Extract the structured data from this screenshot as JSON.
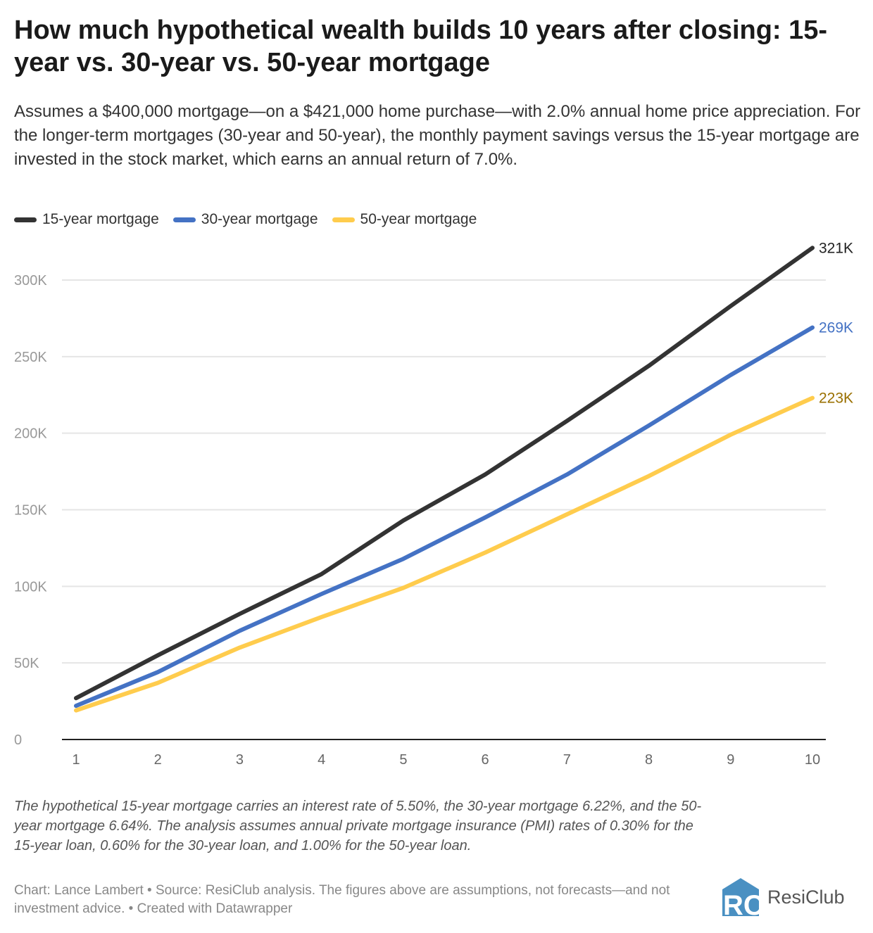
{
  "title": "How much hypothetical wealth builds 10 years after closing: 15-year vs. 30-year vs. 50-year mortgage",
  "description": "Assumes a $400,000 mortgage—on a $421,000 home purchase—with 2.0% annual home price appreciation. For the longer-term mortgages (30-year and 50-year), the monthly payment savings versus the 15-year mortgage are invested in the stock market, which earns an annual return of 7.0%.",
  "notes": "The hypothetical 15-year mortgage carries an interest rate of 5.50%, the 30-year mortgage 6.22%, and the 50-year mortgage 6.64%. The analysis assumes annual private mortgage insurance (PMI) rates of 0.30% for the 15-year loan, 0.60% for the 30-year loan, and 1.00% for the 50-year loan.",
  "source": "Chart: Lance Lambert • Source: ResiClub analysis. The figures above are assumptions, not forecasts—and not investment advice. • Created with Datawrapper",
  "logo": {
    "text": "ResiClub",
    "mark": "RC",
    "color": "#4a90c2"
  },
  "chart_data": {
    "type": "line",
    "x": [
      1,
      2,
      3,
      4,
      5,
      6,
      7,
      8,
      9,
      10
    ],
    "xlim": [
      1,
      10
    ],
    "ylim": [
      0,
      320000
    ],
    "yticks": [
      0,
      50000,
      100000,
      150000,
      200000,
      250000,
      300000
    ],
    "ytick_labels": [
      "0",
      "50K",
      "100K",
      "150K",
      "200K",
      "250K",
      "300K"
    ],
    "xtick_labels": [
      "1",
      "2",
      "3",
      "4",
      "5",
      "6",
      "7",
      "8",
      "9",
      "10"
    ],
    "grid": true,
    "legend_position": "top-left",
    "series": [
      {
        "name": "15-year mortgage",
        "color": "#333333",
        "label_color": "#222222",
        "end_label": "321K",
        "values": [
          27000,
          55000,
          82000,
          108000,
          143000,
          173000,
          208000,
          244000,
          283000,
          321000
        ]
      },
      {
        "name": "30-year mortgage",
        "color": "#4472c4",
        "label_color": "#4472c4",
        "end_label": "269K",
        "values": [
          22000,
          44000,
          71000,
          95000,
          118000,
          145000,
          173000,
          205000,
          238000,
          269000
        ]
      },
      {
        "name": "50-year mortgage",
        "color": "#ffcc4d",
        "label_color": "#9a7000",
        "end_label": "223K",
        "values": [
          19000,
          37000,
          60000,
          80000,
          99000,
          122000,
          147000,
          172000,
          199000,
          223000
        ]
      }
    ]
  }
}
